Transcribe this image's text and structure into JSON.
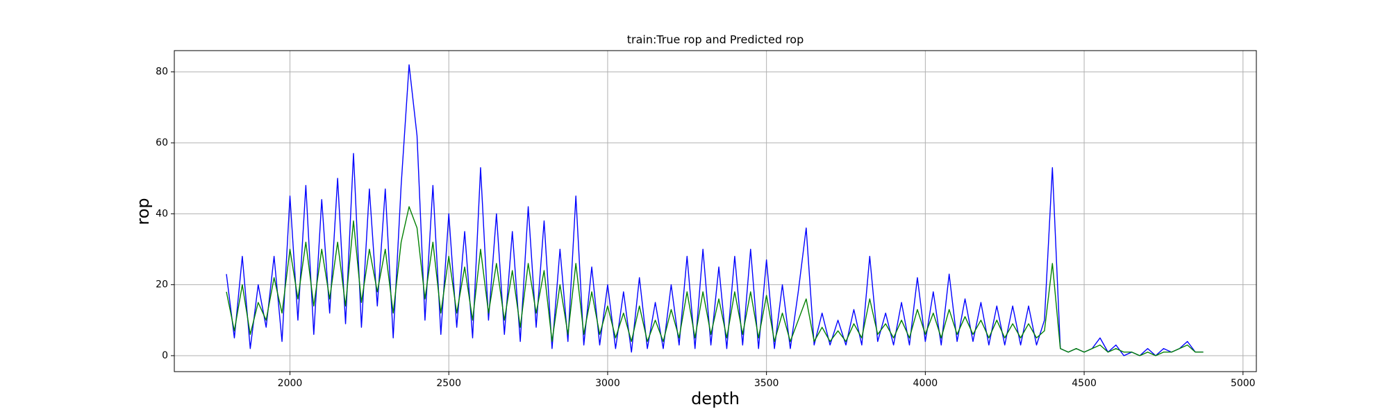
{
  "chart_data": {
    "type": "line",
    "title": "train:True rop and Predicted rop",
    "xlabel": "depth",
    "ylabel": "rop",
    "x": [
      1800,
      1825,
      1850,
      1875,
      1900,
      1925,
      1950,
      1975,
      2000,
      2025,
      2050,
      2075,
      2100,
      2125,
      2150,
      2175,
      2200,
      2225,
      2250,
      2275,
      2300,
      2325,
      2350,
      2375,
      2400,
      2425,
      2450,
      2475,
      2500,
      2525,
      2550,
      2575,
      2600,
      2625,
      2650,
      2675,
      2700,
      2725,
      2750,
      2775,
      2800,
      2825,
      2850,
      2875,
      2900,
      2925,
      2950,
      2975,
      3000,
      3025,
      3050,
      3075,
      3100,
      3125,
      3150,
      3175,
      3200,
      3225,
      3250,
      3275,
      3300,
      3325,
      3350,
      3375,
      3400,
      3425,
      3450,
      3475,
      3500,
      3525,
      3550,
      3575,
      3600,
      3625,
      3650,
      3675,
      3700,
      3725,
      3750,
      3775,
      3800,
      3825,
      3850,
      3875,
      3900,
      3925,
      3950,
      3975,
      4000,
      4025,
      4050,
      4075,
      4100,
      4125,
      4150,
      4175,
      4200,
      4225,
      4250,
      4275,
      4300,
      4325,
      4350,
      4375,
      4400,
      4425,
      4450,
      4475,
      4500,
      4525,
      4550,
      4575,
      4600,
      4625,
      4650,
      4675,
      4700,
      4725,
      4750,
      4775,
      4800,
      4825,
      4850,
      4875
    ],
    "series": [
      {
        "color": "#0000ff",
        "values": [
          23,
          5,
          28,
          2,
          20,
          8,
          28,
          4,
          45,
          10,
          48,
          6,
          44,
          12,
          50,
          9,
          57,
          8,
          47,
          14,
          47,
          5,
          48,
          82,
          62,
          10,
          48,
          6,
          40,
          8,
          35,
          5,
          53,
          10,
          40,
          6,
          35,
          4,
          42,
          8,
          38,
          2,
          30,
          4,
          45,
          3,
          25,
          3,
          20,
          2,
          18,
          1,
          22,
          2,
          15,
          2,
          20,
          3,
          28,
          2,
          30,
          3,
          25,
          2,
          28,
          3,
          30,
          2,
          27,
          2,
          20,
          2,
          18,
          36,
          3,
          12,
          3,
          10,
          3,
          13,
          3,
          28,
          4,
          12,
          3,
          15,
          3,
          22,
          4,
          18,
          3,
          23,
          4,
          16,
          4,
          15,
          3,
          14,
          3,
          14,
          3,
          14,
          3,
          10,
          53,
          2,
          1,
          2,
          1,
          2,
          5,
          1,
          3,
          0,
          1,
          0,
          2,
          0,
          2,
          1,
          2,
          4,
          1,
          1
        ]
      },
      {
        "color": "#008000",
        "values": [
          18,
          7,
          20,
          6,
          15,
          10,
          22,
          12,
          30,
          16,
          32,
          14,
          30,
          16,
          32,
          14,
          38,
          15,
          30,
          18,
          30,
          12,
          32,
          42,
          36,
          16,
          32,
          12,
          28,
          12,
          25,
          10,
          30,
          12,
          26,
          10,
          24,
          8,
          26,
          12,
          24,
          4,
          20,
          6,
          26,
          6,
          18,
          6,
          14,
          5,
          12,
          4,
          14,
          4,
          10,
          4,
          13,
          5,
          18,
          5,
          18,
          6,
          16,
          5,
          18,
          6,
          18,
          5,
          17,
          4,
          12,
          4,
          10,
          16,
          4,
          8,
          4,
          7,
          4,
          9,
          5,
          16,
          6,
          9,
          5,
          10,
          5,
          13,
          6,
          12,
          5,
          13,
          6,
          11,
          6,
          10,
          5,
          10,
          5,
          9,
          5,
          9,
          5,
          7,
          26,
          2,
          1,
          2,
          1,
          2,
          3,
          1,
          2,
          1,
          1,
          0,
          1,
          0,
          1,
          1,
          2,
          3,
          1,
          1
        ]
      }
    ],
    "xlim": [
      1636,
      5042
    ],
    "xticks": [
      2000,
      2500,
      3000,
      3500,
      4000,
      4500,
      5000
    ],
    "ylim": [
      -4.5,
      86
    ],
    "yticks": [
      0,
      20,
      40,
      60,
      80
    ],
    "grid": true
  }
}
